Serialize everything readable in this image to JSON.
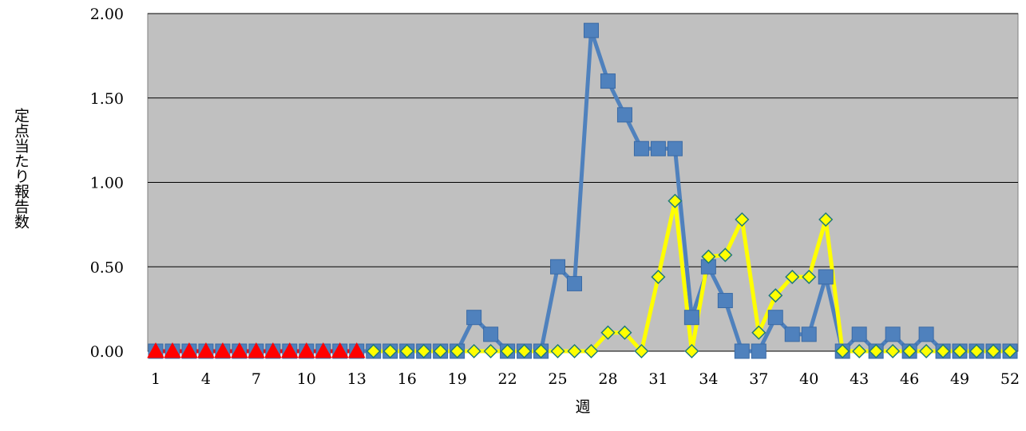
{
  "chart_data": {
    "type": "line",
    "xlabel": "週",
    "ylabel": "定点当たり報告数",
    "ylim": [
      0,
      2.0
    ],
    "yticks": [
      "0.00",
      "0.50",
      "1.00",
      "1.50",
      "2.00"
    ],
    "xticks": [
      "1",
      "4",
      "7",
      "10",
      "13",
      "16",
      "19",
      "22",
      "25",
      "28",
      "31",
      "34",
      "37",
      "40",
      "43",
      "46",
      "49",
      "52"
    ],
    "grid": true,
    "plot_background": "#c0c0c0",
    "series": [
      {
        "color": "#4f81bd",
        "marker": "square",
        "x": [
          1,
          2,
          3,
          4,
          5,
          6,
          7,
          8,
          9,
          10,
          11,
          12,
          13,
          14,
          15,
          16,
          17,
          18,
          19,
          20,
          21,
          22,
          23,
          24,
          25,
          26,
          27,
          28,
          29,
          30,
          31,
          32,
          33,
          34,
          35,
          36,
          37,
          38,
          39,
          40,
          41,
          42,
          43,
          44,
          45,
          46,
          47,
          48,
          49,
          50,
          51,
          52
        ],
        "values": [
          0,
          0,
          0,
          0,
          0,
          0,
          0,
          0,
          0,
          0,
          0,
          0,
          0,
          0,
          0,
          0,
          0,
          0,
          0,
          0.2,
          0.1,
          0,
          0,
          0,
          0.5,
          0.4,
          1.9,
          1.6,
          1.4,
          1.2,
          1.2,
          1.2,
          0.2,
          0.5,
          0.3,
          0,
          0,
          0.2,
          0.1,
          0.1,
          0.44,
          0,
          0.1,
          0,
          0.1,
          0,
          0.1,
          0,
          0,
          0,
          0,
          0
        ]
      },
      {
        "color": "#ffff00",
        "marker": "diamond",
        "x": [
          14,
          15,
          16,
          17,
          18,
          19,
          20,
          21,
          22,
          23,
          24,
          25,
          26,
          27,
          28,
          29,
          30,
          31,
          32,
          33,
          34,
          35,
          36,
          37,
          38,
          39,
          40,
          41,
          42,
          43,
          44,
          45,
          46,
          47,
          48,
          49,
          50,
          51,
          52
        ],
        "values": [
          0,
          0,
          0,
          0,
          0,
          0,
          0,
          0,
          0,
          0,
          0,
          0,
          0,
          0,
          0.11,
          0.11,
          0,
          0.44,
          0.89,
          0,
          0.56,
          0.57,
          0.78,
          0.11,
          0.33,
          0.44,
          0.44,
          0.78,
          0,
          0,
          0,
          0,
          0,
          0,
          0,
          0,
          0,
          0,
          0
        ]
      },
      {
        "color": "#ff0000",
        "marker": "triangle",
        "x": [
          1,
          2,
          3,
          4,
          5,
          6,
          7,
          8,
          9,
          10,
          11,
          12,
          13
        ],
        "values": [
          0,
          0,
          0,
          0,
          0,
          0,
          0,
          0,
          0,
          0,
          0,
          0,
          0
        ]
      }
    ]
  }
}
